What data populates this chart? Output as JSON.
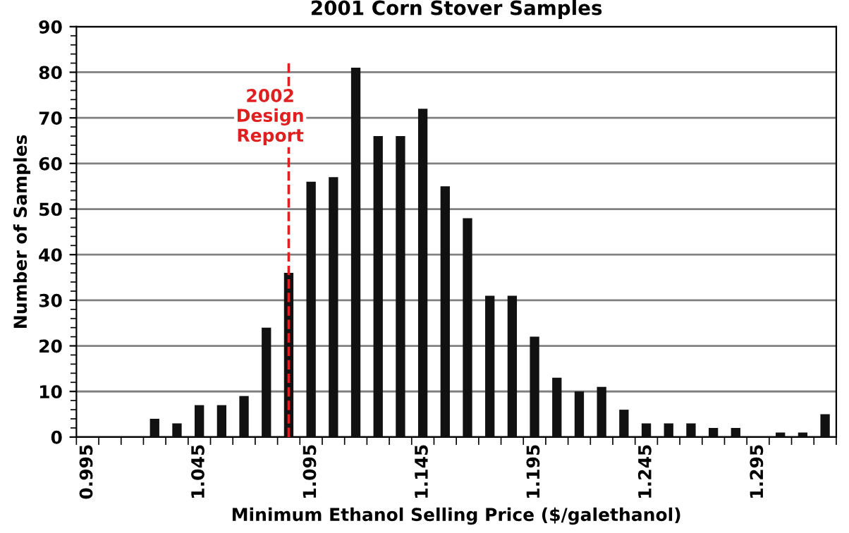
{
  "chart_data": {
    "type": "bar",
    "title": "2001 Corn Stover Samples",
    "xlabel": "Minimum Ethanol Selling Price ($/galethanol)",
    "ylabel": "Number of Samples",
    "categories": [
      "0.995",
      null,
      null,
      null,
      null,
      "1.045",
      null,
      null,
      null,
      null,
      "1.095",
      null,
      null,
      null,
      null,
      "1.145",
      null,
      null,
      null,
      null,
      "1.195",
      null,
      null,
      null,
      null,
      "1.245",
      null,
      null,
      null,
      null,
      "1.295",
      null,
      null,
      null
    ],
    "values": [
      0,
      0,
      0,
      4,
      3,
      7,
      7,
      9,
      24,
      36,
      56,
      57,
      81,
      66,
      66,
      72,
      55,
      48,
      31,
      31,
      22,
      13,
      10,
      11,
      6,
      3,
      3,
      3,
      2,
      2,
      0,
      1,
      1,
      5
    ],
    "color": "#111111",
    "ylim": [
      0,
      90
    ],
    "yticks": [
      0,
      10,
      20,
      30,
      40,
      50,
      60,
      70,
      80,
      90
    ],
    "grid": "y",
    "annotations": [
      "2002\nDesign\nReport"
    ]
  }
}
